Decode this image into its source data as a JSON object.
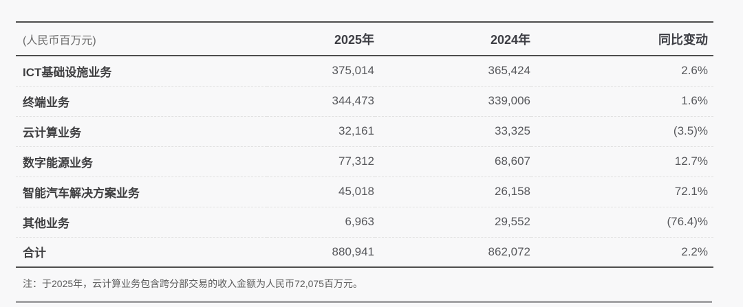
{
  "table": {
    "unit_label": "(人民币百万元)",
    "columns": [
      {
        "key": "y2025",
        "label": "2025年"
      },
      {
        "key": "y2024",
        "label": "2024年"
      },
      {
        "key": "yoy",
        "label": "同比变动"
      }
    ],
    "rows": [
      {
        "label": "ICT基础设施业务",
        "y2025": "375,014",
        "y2024": "365,424",
        "yoy": "2.6%"
      },
      {
        "label": "终端业务",
        "y2025": "344,473",
        "y2024": "339,006",
        "yoy": "1.6%"
      },
      {
        "label": "云计算业务",
        "y2025": "32,161",
        "y2024": "33,325",
        "yoy": "(3.5)%"
      },
      {
        "label": "数字能源业务",
        "y2025": "77,312",
        "y2024": "68,607",
        "yoy": "12.7%"
      },
      {
        "label": "智能汽车解决方案业务",
        "y2025": "45,018",
        "y2024": "26,158",
        "yoy": "72.1%"
      },
      {
        "label": "其他业务",
        "y2025": "6,963",
        "y2024": "29,552",
        "yoy": "(76.4)%"
      },
      {
        "label": "合计",
        "y2025": "880,941",
        "y2024": "862,072",
        "yoy": "2.2%"
      }
    ],
    "note": "注：于2025年，云计算业务包含跨分部交易的收入金额为人民币72,075百万元。"
  },
  "colors": {
    "page_bg": "#f8f8f9",
    "solid_border": "#4d4d4d",
    "dashed_border": "#e0e0e0",
    "header_text": "#3d3e44",
    "label_text": "#3f3f41",
    "value_text": "#57585c",
    "unit_text": "#6b6b6b",
    "note_text": "#5c5c5c",
    "bottom_bar": "#a3a3a5"
  }
}
